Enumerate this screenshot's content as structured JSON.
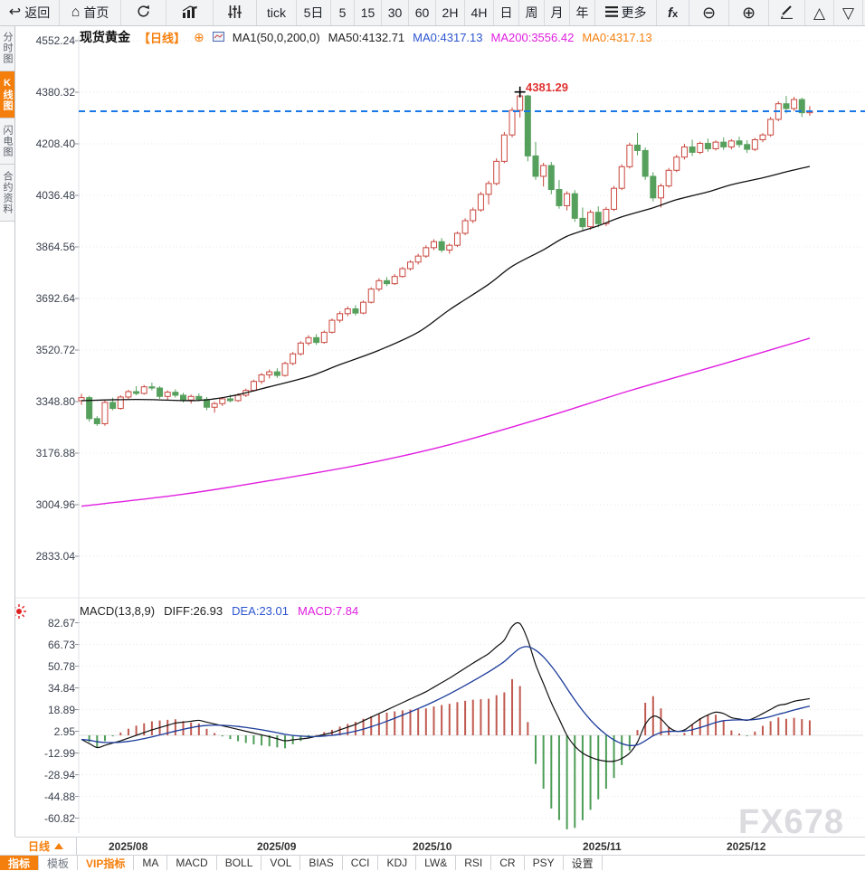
{
  "toolbar": {
    "items": [
      {
        "name": "back-button",
        "icon": "back",
        "label": "返回"
      },
      {
        "name": "home-button",
        "icon": "home",
        "label": "首页"
      },
      {
        "name": "refresh-button",
        "icon": "refresh",
        "label": ""
      },
      {
        "name": "chart-type-line-button",
        "icon": "barchart",
        "label": ""
      },
      {
        "name": "chart-type-candle-button",
        "icon": "sliders",
        "label": ""
      },
      {
        "name": "period-tick-button",
        "icon": "",
        "label": "tick"
      },
      {
        "name": "period-5day-button",
        "icon": "",
        "label": "5日"
      },
      {
        "name": "period-5m-button",
        "icon": "",
        "label": "5"
      },
      {
        "name": "period-15m-button",
        "icon": "",
        "label": "15"
      },
      {
        "name": "period-30m-button",
        "icon": "",
        "label": "30"
      },
      {
        "name": "period-60m-button",
        "icon": "",
        "label": "60"
      },
      {
        "name": "period-2h-button",
        "icon": "",
        "label": "2H"
      },
      {
        "name": "period-4h-button",
        "icon": "",
        "label": "4H"
      },
      {
        "name": "period-day-button",
        "icon": "",
        "label": "日"
      },
      {
        "name": "period-week-button",
        "icon": "",
        "label": "周"
      },
      {
        "name": "period-month-button",
        "icon": "",
        "label": "月"
      },
      {
        "name": "period-year-button",
        "icon": "",
        "label": "年"
      },
      {
        "name": "more-button",
        "icon": "menu",
        "label": "更多"
      },
      {
        "name": "indicator-fx-button",
        "icon": "fx",
        "label": ""
      },
      {
        "name": "zoom-out-button",
        "icon": "zoomout",
        "label": ""
      },
      {
        "name": "zoom-in-button",
        "icon": "zoomin",
        "label": ""
      },
      {
        "name": "draw-button",
        "icon": "pencil",
        "label": ""
      },
      {
        "name": "panel-up-button",
        "icon": "triup",
        "label": ""
      },
      {
        "name": "panel-down-button",
        "icon": "tridown",
        "label": ""
      }
    ]
  },
  "sidebar": {
    "items": [
      {
        "label": "分时图",
        "active": false
      },
      {
        "label": "K线图",
        "active": true
      },
      {
        "label": "闪电图",
        "active": false
      },
      {
        "label": "合约资料",
        "active": false
      }
    ]
  },
  "title": {
    "symbol": "现货黄金",
    "period": "【日线】",
    "ma_settings": "MA1(50,0,200,0)",
    "ma50": "MA50:4132.71",
    "ma0_blue": "MA0:4317.13",
    "ma200": "MA200:3556.42",
    "ma0_orange": "MA0:4317.13"
  },
  "price_axis": [
    "4552.24",
    "4380.32",
    "4208.40",
    "4036.48",
    "3864.56",
    "3692.64",
    "3520.72",
    "3348.80",
    "3176.88",
    "3004.96",
    "2833.04"
  ],
  "macd_axis": [
    "82.67",
    "66.73",
    "50.78",
    "34.84",
    "18.89",
    "2.95",
    "-12.99",
    "-28.94",
    "-44.88",
    "-60.82"
  ],
  "macd_labels": {
    "params": "MACD(13,8,9)",
    "diff": "DIFF:26.93",
    "dea": "DEA:23.01",
    "macd": "MACD:7.84"
  },
  "x_axis": {
    "labels": [
      "2025/08",
      "2025/09",
      "2025/10",
      "2025/11",
      "2025/12"
    ]
  },
  "period_selector": "日线",
  "bottom_bar": {
    "items": [
      {
        "label": "指标",
        "style": "active"
      },
      {
        "label": "模板",
        "style": "dim"
      },
      {
        "label": "VIP指标",
        "style": "vip"
      },
      {
        "label": "MA",
        "style": ""
      },
      {
        "label": "MACD",
        "style": ""
      },
      {
        "label": "BOLL",
        "style": ""
      },
      {
        "label": "VOL",
        "style": ""
      },
      {
        "label": "BIAS",
        "style": ""
      },
      {
        "label": "CCI",
        "style": ""
      },
      {
        "label": "KDJ",
        "style": ""
      },
      {
        "label": "LW&",
        "style": ""
      },
      {
        "label": "RSI",
        "style": ""
      },
      {
        "label": "CR",
        "style": ""
      },
      {
        "label": "PSY",
        "style": ""
      },
      {
        "label": "设置",
        "style": ""
      }
    ]
  },
  "watermark": "FX678",
  "colors": {
    "accent_orange": "#f57f0c",
    "up_red": "#c9463d",
    "down_green": "#56a05d",
    "ma50_black": "#111111",
    "ma200_magenta": "#e01ee0",
    "dea_blue": "#1b3b9b",
    "price_line_blue": "#1878e8",
    "annotation_red": "#e03030"
  },
  "chart_data": {
    "type": "candlestick",
    "title": "现货黄金 日线",
    "ylim": [
      2833.04,
      4552.24
    ],
    "months": [
      "2025/08",
      "2025/09",
      "2025/10",
      "2025/11",
      "2025/12"
    ],
    "current_price": 4317.13,
    "annotation": {
      "label": "4381.29",
      "candle_index": 56,
      "price": 4381.29
    },
    "candles": [
      [
        3352,
        3375,
        3338,
        3362
      ],
      [
        3362,
        3368,
        3282,
        3292
      ],
      [
        3292,
        3300,
        3268,
        3275
      ],
      [
        3275,
        3352,
        3268,
        3346
      ],
      [
        3346,
        3362,
        3320,
        3326
      ],
      [
        3326,
        3370,
        3322,
        3364
      ],
      [
        3364,
        3388,
        3358,
        3382
      ],
      [
        3382,
        3400,
        3370,
        3376
      ],
      [
        3376,
        3404,
        3372,
        3398
      ],
      [
        3398,
        3412,
        3386,
        3394
      ],
      [
        3394,
        3400,
        3358,
        3366
      ],
      [
        3366,
        3386,
        3352,
        3380
      ],
      [
        3380,
        3390,
        3362,
        3370
      ],
      [
        3370,
        3378,
        3346,
        3354
      ],
      [
        3354,
        3372,
        3342,
        3366
      ],
      [
        3366,
        3376,
        3350,
        3356
      ],
      [
        3356,
        3364,
        3320,
        3330
      ],
      [
        3330,
        3348,
        3312,
        3342
      ],
      [
        3342,
        3364,
        3334,
        3358
      ],
      [
        3358,
        3372,
        3346,
        3352
      ],
      [
        3352,
        3376,
        3348,
        3370
      ],
      [
        3370,
        3392,
        3364,
        3386
      ],
      [
        3386,
        3422,
        3382,
        3416
      ],
      [
        3416,
        3444,
        3408,
        3438
      ],
      [
        3438,
        3456,
        3426,
        3448
      ],
      [
        3448,
        3460,
        3428,
        3436
      ],
      [
        3436,
        3482,
        3432,
        3476
      ],
      [
        3476,
        3514,
        3470,
        3508
      ],
      [
        3508,
        3550,
        3502,
        3544
      ],
      [
        3544,
        3570,
        3536,
        3562
      ],
      [
        3562,
        3574,
        3538,
        3546
      ],
      [
        3546,
        3586,
        3542,
        3580
      ],
      [
        3580,
        3626,
        3576,
        3620
      ],
      [
        3620,
        3650,
        3612,
        3642
      ],
      [
        3642,
        3666,
        3634,
        3658
      ],
      [
        3658,
        3670,
        3636,
        3644
      ],
      [
        3644,
        3686,
        3640,
        3680
      ],
      [
        3680,
        3730,
        3676,
        3724
      ],
      [
        3724,
        3760,
        3716,
        3752
      ],
      [
        3752,
        3764,
        3734,
        3742
      ],
      [
        3742,
        3774,
        3738,
        3766
      ],
      [
        3766,
        3798,
        3762,
        3792
      ],
      [
        3792,
        3820,
        3786,
        3814
      ],
      [
        3814,
        3842,
        3806,
        3834
      ],
      [
        3834,
        3870,
        3828,
        3862
      ],
      [
        3862,
        3890,
        3854,
        3882
      ],
      [
        3882,
        3894,
        3846,
        3854
      ],
      [
        3854,
        3876,
        3842,
        3870
      ],
      [
        3870,
        3916,
        3864,
        3910
      ],
      [
        3910,
        3960,
        3904,
        3952
      ],
      [
        3952,
        3996,
        3944,
        3988
      ],
      [
        3988,
        4048,
        3982,
        4040
      ],
      [
        4040,
        4085,
        4006,
        4076
      ],
      [
        4076,
        4160,
        4070,
        4150
      ],
      [
        4150,
        4248,
        4144,
        4238
      ],
      [
        4238,
        4330,
        4230,
        4320
      ],
      [
        4320,
        4381.29,
        4296,
        4368
      ],
      [
        4368,
        4372,
        4150,
        4168
      ],
      [
        4168,
        4215,
        4088,
        4100
      ],
      [
        4100,
        4145,
        4066,
        4136
      ],
      [
        4136,
        4148,
        4040,
        4056
      ],
      [
        4056,
        4088,
        3992,
        4002
      ],
      [
        4002,
        4050,
        3986,
        4042
      ],
      [
        4042,
        4054,
        3948,
        3960
      ],
      [
        3960,
        3996,
        3918,
        3932
      ],
      [
        3932,
        3988,
        3922,
        3980
      ],
      [
        3980,
        4000,
        3930,
        3942
      ],
      [
        3942,
        3998,
        3934,
        3990
      ],
      [
        3990,
        4068,
        3984,
        4060
      ],
      [
        4060,
        4140,
        4054,
        4132
      ],
      [
        4132,
        4212,
        4126,
        4204
      ],
      [
        4204,
        4245,
        4170,
        4186
      ],
      [
        4186,
        4196,
        4088,
        4100
      ],
      [
        4100,
        4114,
        4016,
        4028
      ],
      [
        4028,
        4076,
        3996,
        4068
      ],
      [
        4068,
        4128,
        4062,
        4120
      ],
      [
        4120,
        4172,
        4114,
        4164
      ],
      [
        4164,
        4208,
        4156,
        4198
      ],
      [
        4198,
        4222,
        4168,
        4180
      ],
      [
        4180,
        4216,
        4174,
        4210
      ],
      [
        4210,
        4226,
        4182,
        4192
      ],
      [
        4192,
        4220,
        4186,
        4214
      ],
      [
        4214,
        4230,
        4188,
        4198
      ],
      [
        4198,
        4224,
        4190,
        4218
      ],
      [
        4218,
        4232,
        4196,
        4206
      ],
      [
        4206,
        4220,
        4178,
        4190
      ],
      [
        4190,
        4228,
        4184,
        4222
      ],
      [
        4222,
        4244,
        4214,
        4238
      ],
      [
        4238,
        4298,
        4232,
        4290
      ],
      [
        4290,
        4350,
        4284,
        4342
      ],
      [
        4342,
        4368,
        4310,
        4326
      ],
      [
        4326,
        4365,
        4318,
        4356
      ],
      [
        4356,
        4362,
        4298,
        4312
      ],
      [
        4312,
        4334,
        4302,
        4317.13
      ]
    ],
    "ma50_points": [
      [
        0,
        3352
      ],
      [
        7,
        3356
      ],
      [
        14,
        3352
      ],
      [
        17,
        3358
      ],
      [
        20,
        3372
      ],
      [
        24,
        3398
      ],
      [
        29,
        3432
      ],
      [
        33,
        3472
      ],
      [
        38,
        3520
      ],
      [
        43,
        3580
      ],
      [
        47,
        3655
      ],
      [
        52,
        3740
      ],
      [
        55,
        3800
      ],
      [
        59,
        3855
      ],
      [
        62,
        3900
      ],
      [
        66,
        3935
      ],
      [
        69,
        3965
      ],
      [
        73,
        3995
      ],
      [
        76,
        4022
      ],
      [
        80,
        4048
      ],
      [
        83,
        4072
      ],
      [
        87,
        4095
      ],
      [
        90,
        4115
      ],
      [
        93,
        4133
      ]
    ],
    "ma200_points": [
      [
        0,
        3000
      ],
      [
        13,
        3040
      ],
      [
        24,
        3085
      ],
      [
        36,
        3140
      ],
      [
        47,
        3205
      ],
      [
        59,
        3295
      ],
      [
        70,
        3385
      ],
      [
        82,
        3475
      ],
      [
        93,
        3560
      ]
    ],
    "macd": {
      "params": [
        13,
        8,
        9
      ],
      "diff_end": 26.93,
      "dea_end": 23.01,
      "hist_end": 7.84,
      "diff_points": [
        [
          0,
          -3
        ],
        [
          2,
          -9
        ],
        [
          5,
          -4
        ],
        [
          9,
          4
        ],
        [
          12,
          9
        ],
        [
          15,
          11
        ],
        [
          18,
          7
        ],
        [
          21,
          3
        ],
        [
          24,
          -1
        ],
        [
          26,
          -4
        ],
        [
          29,
          -2
        ],
        [
          32,
          2
        ],
        [
          35,
          8
        ],
        [
          38,
          16
        ],
        [
          41,
          24
        ],
        [
          44,
          32
        ],
        [
          47,
          42
        ],
        [
          50,
          53
        ],
        [
          52,
          60
        ],
        [
          54,
          70
        ],
        [
          55,
          80
        ],
        [
          56,
          82
        ],
        [
          57,
          70
        ],
        [
          58,
          52
        ],
        [
          59,
          38
        ],
        [
          60,
          24
        ],
        [
          61,
          12
        ],
        [
          62,
          0
        ],
        [
          63,
          -8
        ],
        [
          64,
          -13
        ],
        [
          65,
          -16
        ],
        [
          66,
          -18
        ],
        [
          67,
          -19
        ],
        [
          68,
          -19
        ],
        [
          69,
          -17
        ],
        [
          70,
          -13
        ],
        [
          71,
          -5
        ],
        [
          72,
          8
        ],
        [
          73,
          14
        ],
        [
          74,
          12
        ],
        [
          75,
          6
        ],
        [
          76,
          3
        ],
        [
          77,
          4
        ],
        [
          78,
          8
        ],
        [
          79,
          12
        ],
        [
          80,
          15
        ],
        [
          81,
          17
        ],
        [
          82,
          16
        ],
        [
          83,
          13
        ],
        [
          84,
          12
        ],
        [
          85,
          11
        ],
        [
          86,
          13
        ],
        [
          87,
          16
        ],
        [
          88,
          19
        ],
        [
          89,
          22
        ],
        [
          90,
          23
        ],
        [
          91,
          25
        ],
        [
          92,
          26
        ],
        [
          93,
          26.93
        ]
      ]
    }
  }
}
